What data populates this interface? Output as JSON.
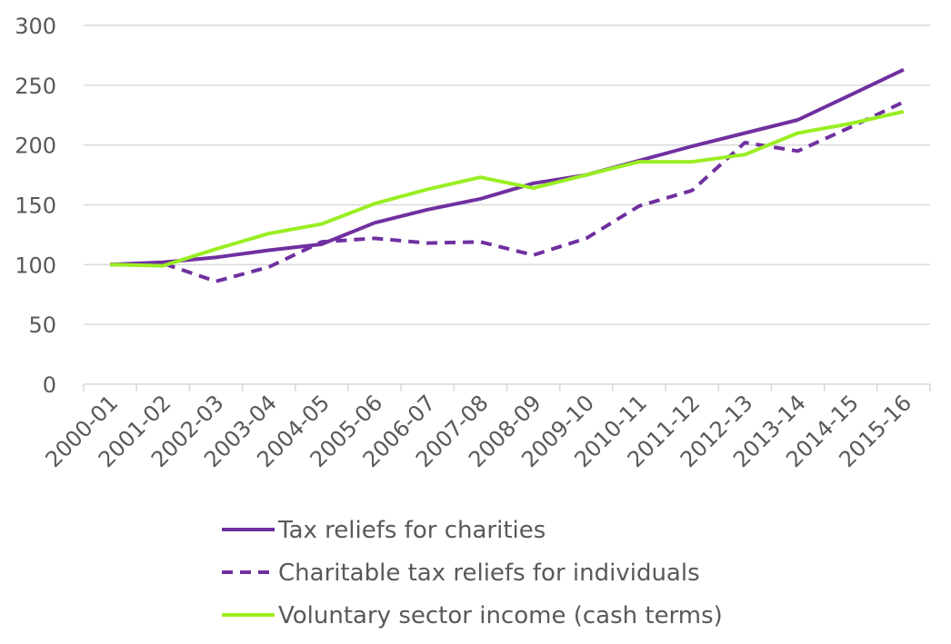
{
  "chart_data": {
    "type": "line",
    "categories": [
      "2000-01",
      "2001-02",
      "2002-03",
      "2003-04",
      "2004-05",
      "2005-06",
      "2006-07",
      "2007-08",
      "2008-09",
      "2009-10",
      "2010-11",
      "2011-12",
      "2012-13",
      "2013-14",
      "2014-15",
      "2015-16"
    ],
    "series": [
      {
        "name": "Tax reliefs for charities",
        "color": "#7030a0",
        "dash": "solid",
        "values": [
          100,
          102,
          106,
          112,
          117,
          135,
          146,
          155,
          168,
          175,
          187,
          199,
          210,
          221,
          242,
          263
        ]
      },
      {
        "name": "Charitable tax reliefs for individuals",
        "color": "#7030a0",
        "dash": "dashed",
        "values": [
          100,
          101,
          86,
          98,
          119,
          122,
          118,
          119,
          108,
          122,
          149,
          162,
          202,
          195,
          215,
          236
        ]
      },
      {
        "name": "Voluntary sector income (cash terms)",
        "color": "#99ee22",
        "dash": "solid",
        "values": [
          100,
          99,
          113,
          126,
          134,
          151,
          163,
          173,
          164,
          175,
          186,
          186,
          192,
          210,
          218,
          228
        ]
      }
    ],
    "ylim": [
      0,
      300
    ],
    "yticks": [
      0,
      50,
      100,
      150,
      200,
      250,
      300
    ],
    "grid": true,
    "legend": "bottom-center",
    "title": "",
    "xlabel": "",
    "ylabel": ""
  }
}
